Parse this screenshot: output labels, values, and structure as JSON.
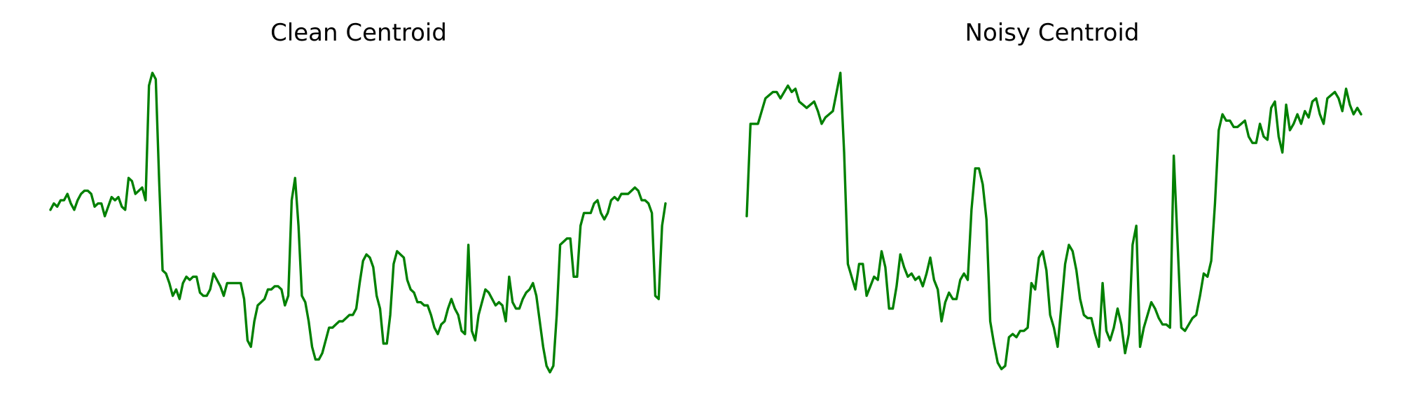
{
  "chart_data": [
    {
      "type": "line",
      "title": "Clean Centroid",
      "xlabel": "",
      "ylabel": "",
      "axes": "off",
      "grid": false,
      "color": "#008000",
      "xlim": [
        0,
        179
      ],
      "ylim": [
        0,
        100
      ],
      "series": [
        {
          "values": [
            55,
            57,
            56,
            58,
            58,
            60,
            57,
            55,
            58,
            60,
            61,
            61,
            60,
            56,
            57,
            57,
            53,
            56,
            59,
            58,
            59,
            56,
            55,
            65,
            64,
            60,
            61,
            62,
            58,
            94,
            98,
            96,
            64,
            36,
            35,
            32,
            28,
            30,
            27,
            32,
            34,
            33,
            34,
            34,
            29,
            28,
            28,
            30,
            35,
            33,
            31,
            28,
            32,
            32,
            32,
            32,
            32,
            27,
            14,
            12,
            20,
            25,
            26,
            27,
            30,
            30,
            31,
            31,
            30,
            25,
            28,
            58,
            65,
            50,
            28,
            26,
            20,
            12,
            8,
            8,
            10,
            14,
            18,
            18,
            19,
            20,
            20,
            21,
            22,
            22,
            24,
            32,
            39,
            41,
            40,
            37,
            28,
            24,
            13,
            13,
            22,
            38,
            42,
            41,
            40,
            33,
            30,
            29,
            26,
            26,
            25,
            25,
            22,
            18,
            16,
            19,
            20,
            24,
            27,
            24,
            22,
            17,
            16,
            44,
            17,
            14,
            22,
            26,
            30,
            29,
            27,
            25,
            26,
            25,
            20,
            34,
            26,
            24,
            24,
            27,
            29,
            30,
            32,
            28,
            20,
            12,
            6,
            4,
            6,
            22,
            44,
            45,
            46,
            46,
            34,
            34,
            50,
            54,
            54,
            54,
            57,
            58,
            54,
            52,
            54,
            58,
            59,
            58,
            60,
            60,
            60,
            61,
            62,
            61,
            58,
            58,
            57,
            54,
            28,
            27,
            50,
            57
          ]
        }
      ]
    },
    {
      "type": "line",
      "title": "Noisy Centroid",
      "xlabel": "",
      "ylabel": "",
      "axes": "off",
      "grid": false,
      "color": "#008000",
      "xlim": [
        0,
        179
      ],
      "ylim": [
        0,
        100
      ],
      "series": [
        {
          "values": [
            53,
            82,
            82,
            82,
            86,
            90,
            91,
            92,
            92,
            90,
            92,
            94,
            92,
            93,
            89,
            88,
            87,
            88,
            89,
            86,
            82,
            84,
            85,
            86,
            92,
            98,
            73,
            38,
            34,
            30,
            38,
            38,
            28,
            31,
            34,
            33,
            42,
            37,
            24,
            24,
            31,
            41,
            37,
            34,
            35,
            33,
            34,
            31,
            35,
            40,
            33,
            30,
            20,
            26,
            29,
            27,
            27,
            33,
            35,
            33,
            55,
            68,
            68,
            63,
            52,
            20,
            13,
            7,
            5,
            6,
            15,
            16,
            15,
            17,
            17,
            18,
            32,
            30,
            40,
            42,
            36,
            22,
            18,
            12,
            25,
            38,
            44,
            42,
            36,
            27,
            22,
            21,
            21,
            16,
            12,
            32,
            17,
            14,
            18,
            24,
            19,
            10,
            16,
            44,
            50,
            12,
            18,
            22,
            26,
            24,
            21,
            19,
            19,
            18,
            72,
            45,
            18,
            17,
            19,
            21,
            22,
            28,
            35,
            34,
            39,
            57,
            80,
            85,
            83,
            83,
            81,
            81,
            82,
            83,
            78,
            76,
            76,
            82,
            78,
            77,
            87,
            89,
            78,
            73,
            88,
            80,
            82,
            85,
            82,
            86,
            84,
            89,
            90,
            85,
            82,
            90,
            91,
            92,
            90,
            86,
            93,
            88,
            85,
            87,
            85
          ]
        }
      ]
    }
  ]
}
